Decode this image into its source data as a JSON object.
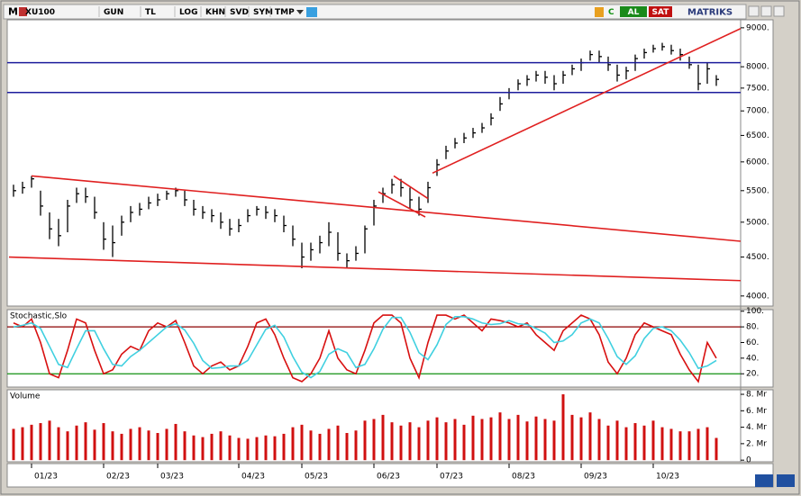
{
  "toolbar": {
    "menu": "M",
    "symbol": "XU100",
    "buttons": [
      "GUN",
      "TL",
      "LOG",
      "KHN",
      "SVD",
      "SYM",
      "TMP"
    ],
    "c": "C",
    "buy": "AL",
    "sell": "SAT",
    "brand": "MATRIKS"
  },
  "chart_data": [
    {
      "type": "ohlc",
      "log": true,
      "color": "#000000",
      "categories": [
        null,
        null,
        "01/23",
        null,
        null,
        null,
        null,
        null,
        null,
        null,
        "02/23",
        null,
        null,
        null,
        null,
        null,
        "03/23",
        null,
        null,
        null,
        null,
        null,
        null,
        null,
        null,
        "04/23",
        null,
        null,
        null,
        null,
        null,
        null,
        "05/23",
        null,
        null,
        null,
        null,
        null,
        null,
        null,
        "06/23",
        null,
        null,
        null,
        null,
        null,
        null,
        "07/23",
        null,
        null,
        null,
        null,
        null,
        null,
        null,
        "08/23",
        null,
        null,
        null,
        null,
        null,
        null,
        null,
        "09/23",
        null,
        null,
        null,
        null,
        null,
        null,
        null,
        "10/23",
        null,
        null,
        null,
        null,
        null,
        null,
        null
      ],
      "high": [
        5600,
        5650,
        5750,
        5500,
        5150,
        5050,
        5350,
        5550,
        5550,
        5400,
        5000,
        4950,
        5100,
        5250,
        5300,
        5400,
        5450,
        5500,
        5550,
        5500,
        5350,
        5250,
        5200,
        5150,
        5050,
        5050,
        5200,
        5250,
        5250,
        5200,
        5100,
        4950,
        4700,
        4700,
        4800,
        5000,
        4850,
        4550,
        4650,
        4950,
        5350,
        5550,
        5700,
        5700,
        5550,
        5400,
        5650,
        6050,
        6300,
        6450,
        6550,
        6650,
        6750,
        6950,
        7300,
        7500,
        7700,
        7800,
        7900,
        7900,
        7800,
        7900,
        8050,
        8200,
        8400,
        8400,
        8250,
        8050,
        8000,
        8300,
        8450,
        8550,
        8600,
        8550,
        8450,
        8250,
        8050,
        8100,
        7800
      ],
      "low": [
        5400,
        5450,
        5550,
        5100,
        4750,
        4650,
        4850,
        5300,
        5300,
        5050,
        4600,
        4500,
        4800,
        5000,
        5100,
        5200,
        5250,
        5350,
        5400,
        5250,
        5100,
        5050,
        5000,
        4900,
        4800,
        4850,
        5000,
        5100,
        5050,
        5000,
        4850,
        4650,
        4350,
        4450,
        4550,
        4650,
        4450,
        4350,
        4450,
        4550,
        4950,
        5300,
        5450,
        5400,
        5200,
        5100,
        5300,
        5750,
        6050,
        6250,
        6350,
        6450,
        6550,
        6700,
        7000,
        7250,
        7450,
        7550,
        7650,
        7600,
        7450,
        7600,
        7800,
        7900,
        8150,
        8100,
        7900,
        7650,
        7700,
        7900,
        8200,
        8350,
        8400,
        8300,
        8150,
        7950,
        7450,
        7600,
        7550
      ],
      "close": [
        5500,
        5550,
        5700,
        5250,
        4900,
        4800,
        5250,
        5450,
        5400,
        5150,
        4750,
        4700,
        5000,
        5150,
        5200,
        5300,
        5350,
        5450,
        5500,
        5350,
        5200,
        5150,
        5100,
        5000,
        4900,
        4950,
        5100,
        5200,
        5150,
        5100,
        4950,
        4750,
        4500,
        4600,
        4700,
        4850,
        4550,
        4450,
        4550,
        4900,
        5250,
        5450,
        5600,
        5550,
        5350,
        5200,
        5550,
        5950,
        6200,
        6350,
        6450,
        6550,
        6650,
        6850,
        7150,
        7400,
        7600,
        7700,
        7800,
        7750,
        7600,
        7800,
        7950,
        8100,
        8300,
        8250,
        8050,
        7800,
        7900,
        8200,
        8350,
        8450,
        8500,
        8400,
        8300,
        8050,
        7600,
        7950,
        7700
      ],
      "ylim": [
        3880,
        9220
      ],
      "yticks": [
        {
          "value": 4000,
          "label": "4000."
        },
        {
          "value": 4500,
          "label": "4500."
        },
        {
          "value": 5000,
          "label": "5000."
        },
        {
          "value": 5500,
          "label": "5500."
        },
        {
          "value": 6000,
          "label": "6000."
        },
        {
          "value": 6500,
          "label": "6500."
        },
        {
          "value": 7000,
          "label": "7000."
        },
        {
          "value": 7500,
          "label": "7500."
        },
        {
          "value": 8000,
          "label": "8000."
        },
        {
          "value": 9000,
          "label": "9000."
        }
      ],
      "hlines": [
        {
          "value": 8100,
          "color": "#1c1c9c"
        },
        {
          "value": 7400,
          "color": "#1c1c9c"
        }
      ],
      "trendlines": [
        {
          "from": [
            2,
            5750
          ],
          "to": [
            80.7,
            4720
          ],
          "color": "#e02020"
        },
        {
          "from": [
            -0.5,
            4500
          ],
          "to": [
            80.7,
            4190
          ],
          "color": "#e02020"
        },
        {
          "from": [
            46.5,
            5800
          ],
          "to": [
            80.7,
            8980
          ],
          "color": "#e02020"
        },
        {
          "from": [
            42.2,
            5750
          ],
          "to": [
            46,
            5370
          ],
          "color": "#e02020"
        },
        {
          "from": [
            40.5,
            5480
          ],
          "to": [
            45.7,
            5080
          ],
          "color": "#e02020"
        }
      ]
    },
    {
      "type": "line",
      "title": "Stochastic,Slo",
      "ylim": [
        3,
        102
      ],
      "yticks": [
        {
          "value": 20,
          "label": "20."
        },
        {
          "value": 40,
          "label": "40."
        },
        {
          "value": 60,
          "label": "60."
        },
        {
          "value": 80,
          "label": "80."
        },
        {
          "value": 100,
          "label": "100."
        }
      ],
      "levels": [
        {
          "value": 80,
          "color": "#8b0000"
        },
        {
          "value": 20,
          "color": "#109010"
        }
      ],
      "series": [
        {
          "color": "#d81010",
          "values": [
            85,
            80,
            90,
            60,
            20,
            15,
            50,
            90,
            85,
            50,
            20,
            25,
            45,
            55,
            50,
            75,
            85,
            80,
            88,
            60,
            30,
            20,
            30,
            35,
            25,
            30,
            55,
            85,
            90,
            70,
            40,
            15,
            10,
            20,
            40,
            75,
            40,
            25,
            20,
            50,
            85,
            95,
            95,
            85,
            40,
            15,
            60,
            95,
            95,
            90,
            95,
            85,
            75,
            90,
            88,
            85,
            80,
            85,
            70,
            60,
            50,
            75,
            85,
            95,
            90,
            70,
            35,
            20,
            40,
            70,
            85,
            80,
            75,
            70,
            45,
            25,
            10,
            60,
            40
          ]
        },
        {
          "color": "#40d0e0",
          "values": [
            80,
            82,
            85,
            78,
            55,
            32,
            28,
            52,
            75,
            75,
            52,
            32,
            30,
            42,
            50,
            60,
            70,
            80,
            84,
            76,
            59,
            37,
            27,
            28,
            30,
            30,
            37,
            57,
            77,
            82,
            67,
            42,
            22,
            15,
            23,
            45,
            52,
            47,
            28,
            32,
            52,
            77,
            92,
            92,
            73,
            47,
            38,
            57,
            83,
            93,
            93,
            90,
            85,
            83,
            84,
            88,
            84,
            83,
            78,
            72,
            60,
            62,
            70,
            85,
            90,
            85,
            65,
            42,
            32,
            43,
            65,
            78,
            80,
            75,
            63,
            47,
            27,
            30,
            37
          ]
        }
      ]
    },
    {
      "type": "bar",
      "title": "Volume",
      "color": "#d01010",
      "ylim": [
        -0.2,
        8.55
      ],
      "yticks": [
        0,
        {
          "value": 2,
          "label": "2. Mr"
        },
        {
          "value": 4,
          "label": "4. Mr"
        },
        {
          "value": 6,
          "label": "6. Mr"
        },
        {
          "value": 8,
          "label": "8. Mr"
        }
      ],
      "values": [
        3.8,
        4.0,
        4.3,
        4.5,
        4.8,
        4.0,
        3.5,
        4.2,
        4.6,
        3.7,
        4.5,
        3.5,
        3.2,
        3.8,
        4.0,
        3.6,
        3.3,
        3.8,
        4.4,
        3.5,
        3.0,
        2.8,
        3.2,
        3.5,
        3.0,
        2.7,
        2.6,
        2.8,
        3.0,
        2.9,
        3.2,
        4.0,
        4.3,
        3.6,
        3.2,
        3.8,
        4.2,
        3.3,
        3.6,
        4.8,
        5.0,
        5.5,
        4.6,
        4.2,
        4.6,
        4.0,
        4.8,
        5.2,
        4.6,
        5.0,
        4.3,
        5.4,
        5.0,
        5.2,
        5.8,
        5.0,
        5.5,
        4.7,
        5.3,
        5.0,
        4.8,
        8.0,
        5.5,
        5.2,
        5.8,
        5.0,
        4.2,
        4.8,
        4.0,
        4.5,
        4.2,
        4.8,
        4.0,
        3.8,
        3.5,
        3.5,
        3.8,
        4.0,
        2.7
      ]
    }
  ]
}
